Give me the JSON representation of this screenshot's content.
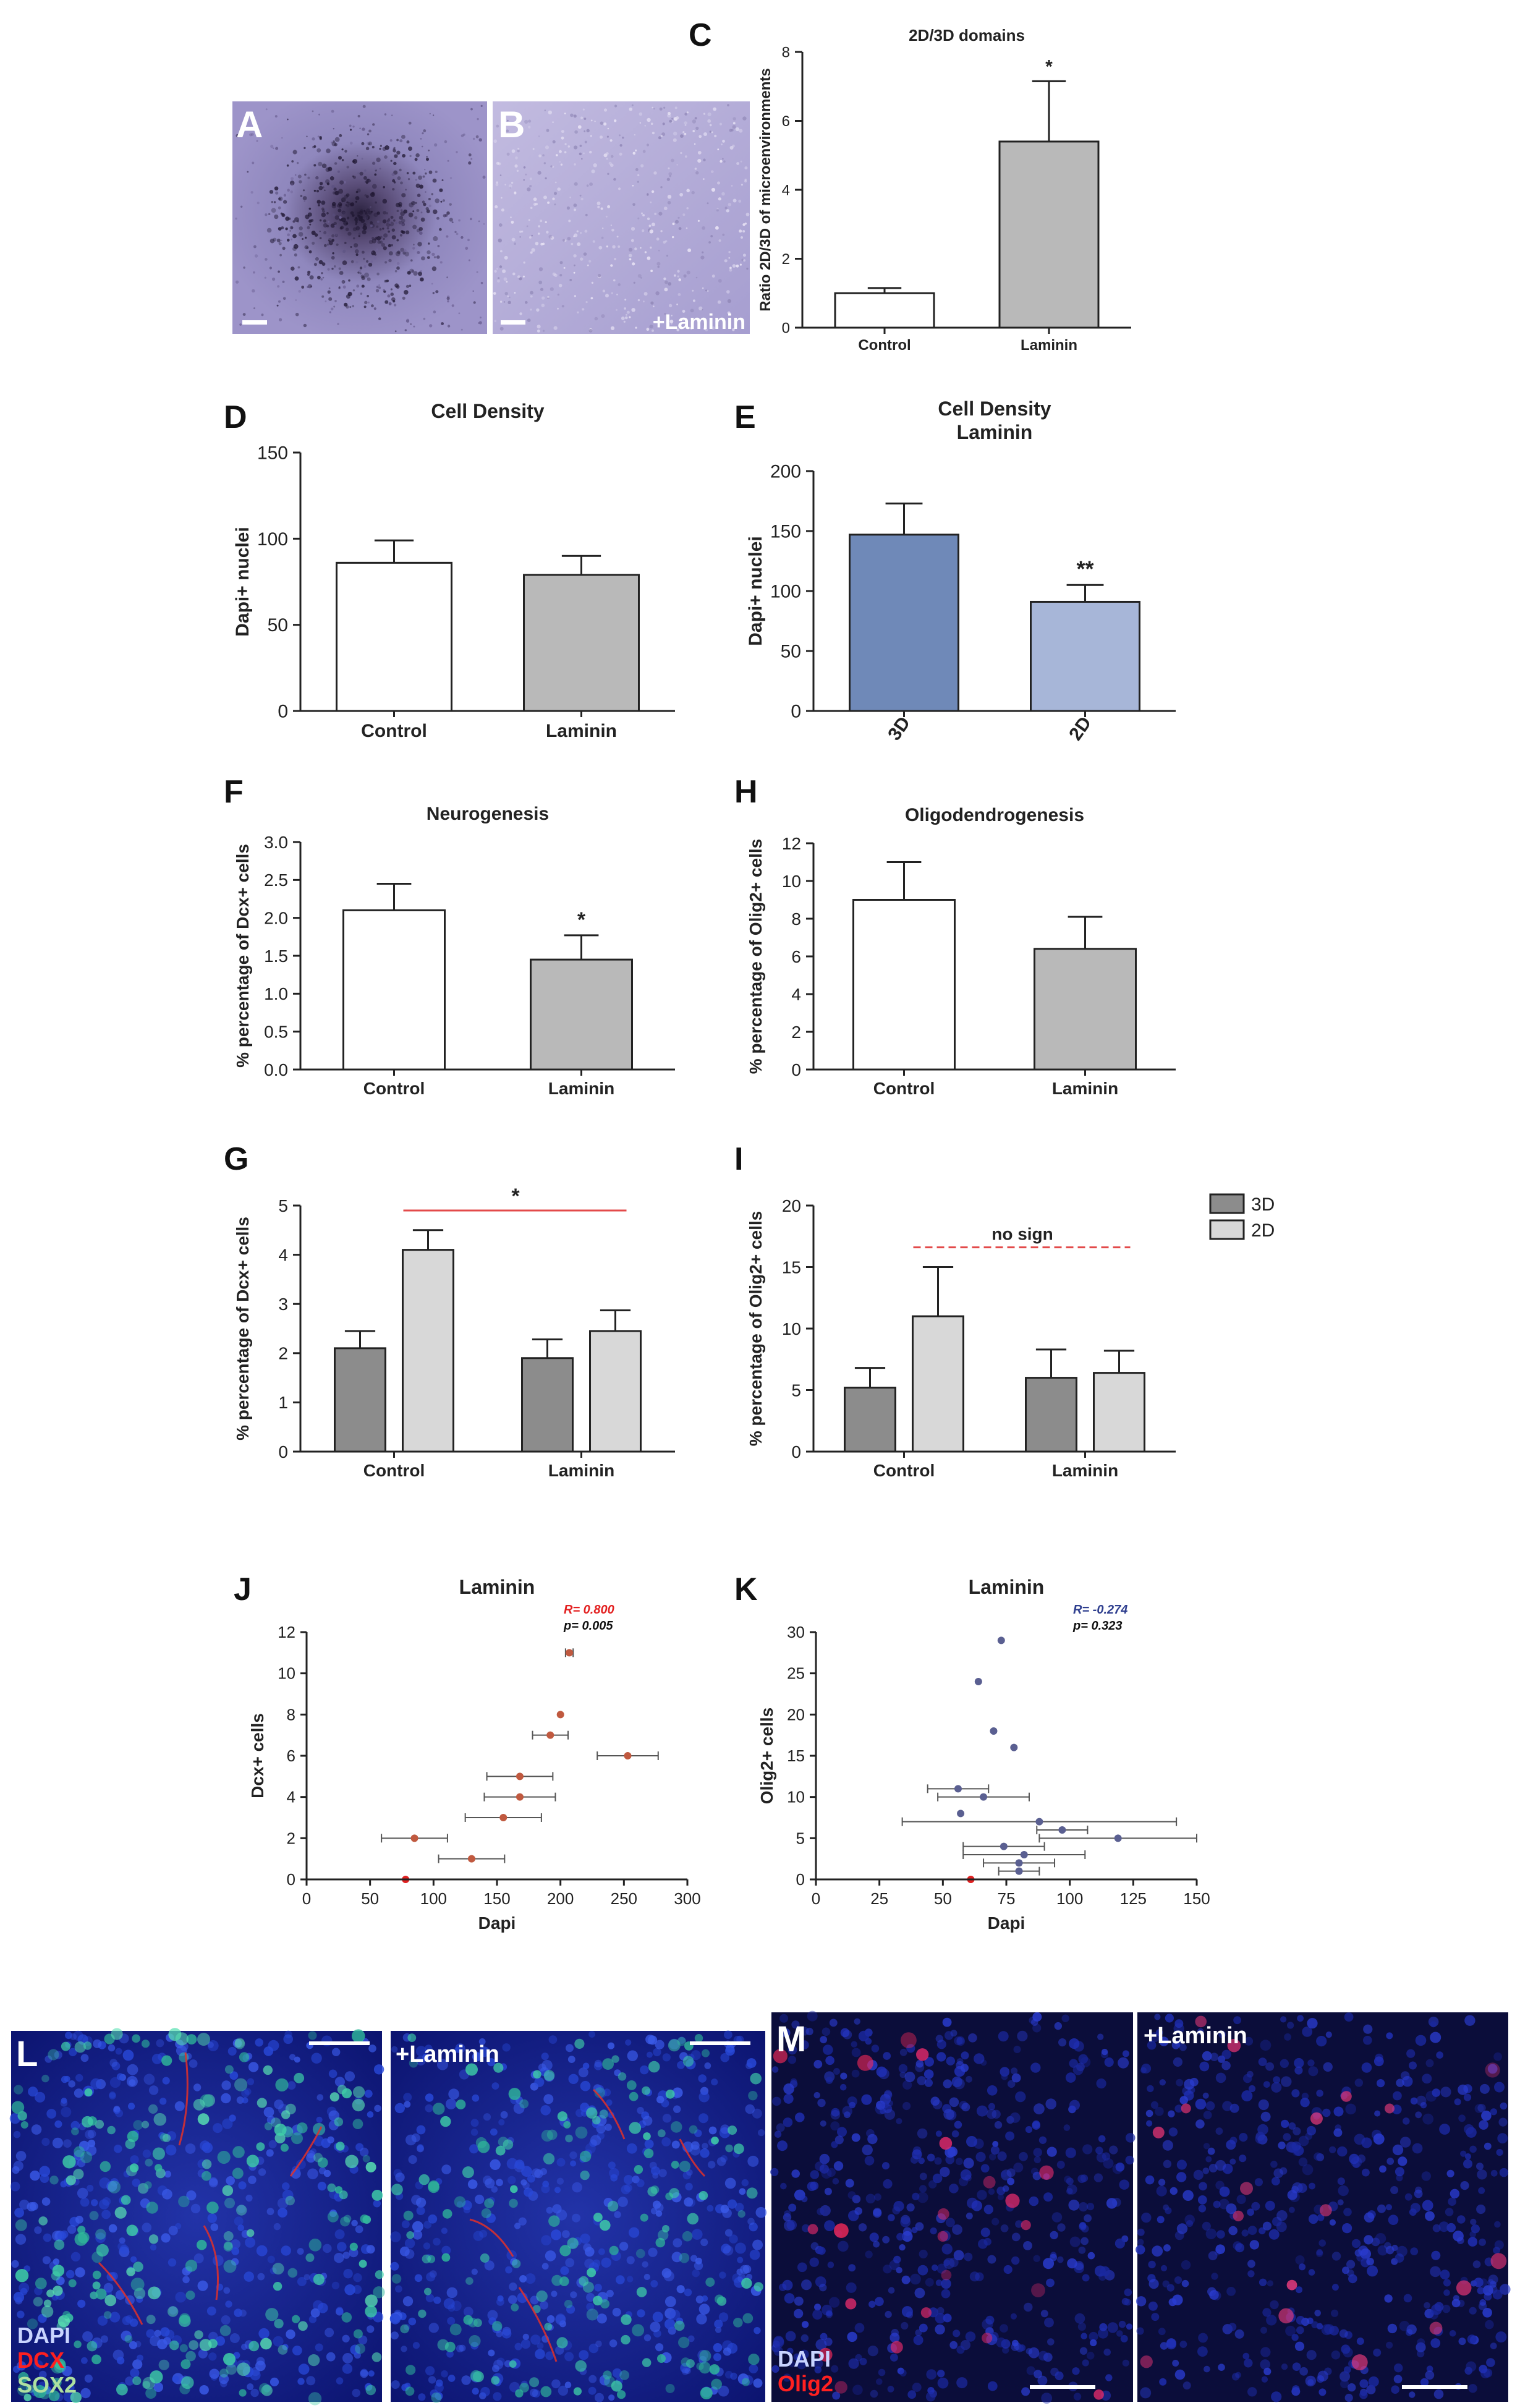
{
  "figure": {
    "panel_letters": {
      "A": "A",
      "B": "B",
      "C": "C",
      "D": "D",
      "E": "E",
      "F": "F",
      "H": "H",
      "G": "G",
      "I": "I",
      "J": "J",
      "K": "K",
      "L": "L",
      "M": "M"
    },
    "photo_overlays": {
      "B_condition": "+Laminin",
      "L_condition": "+Laminin",
      "M_condition": "+Laminin",
      "L_legend": [
        "DAPI",
        "DCX",
        "SOX2"
      ],
      "M_legend": [
        "DAPI",
        "Olig2"
      ]
    },
    "colors": {
      "white_bar": "#ffffff",
      "gray_bar": "#b9b9b9",
      "bar_3d": "#6f89b8",
      "bar_2d": "#a7b6d8",
      "grouped_3d": "#8c8c8c",
      "grouped_2d": "#d8d8d8",
      "sig_line": "#e34a4a",
      "scatter_j": "#c0593f",
      "scatter_k": "#5a5f91",
      "stat_red": "#e32121",
      "stat_blue": "#2f3f8f",
      "micro_a": "#9d94c9",
      "micro_b": "#b3abd6",
      "fluor_blue": "#1f2fb0",
      "fluor_bg": "#06061e"
    }
  },
  "chart_data": [
    {
      "id": "C",
      "type": "bar",
      "title": "2D/3D domains",
      "ylabel": "Ratio 2D/3D of microenvironments",
      "xlabel": "",
      "categories": [
        "Control",
        "Laminin"
      ],
      "values": [
        1.0,
        5.4
      ],
      "errors": [
        0.15,
        1.75
      ],
      "ylim": [
        0,
        8
      ],
      "yticks": [
        0,
        2,
        4,
        6,
        8
      ],
      "bar_colors": [
        "#ffffff",
        "#b9b9b9"
      ],
      "annotations": [
        "",
        "*"
      ]
    },
    {
      "id": "D",
      "type": "bar",
      "title": "Cell Density",
      "ylabel": "Dapi+ nuclei",
      "xlabel": "",
      "categories": [
        "Control",
        "Laminin"
      ],
      "values": [
        86,
        79
      ],
      "errors": [
        13,
        11
      ],
      "ylim": [
        0,
        150
      ],
      "yticks": [
        0,
        50,
        100,
        150
      ],
      "bar_colors": [
        "#ffffff",
        "#b9b9b9"
      ],
      "annotations": [
        "",
        ""
      ]
    },
    {
      "id": "E",
      "type": "bar",
      "title": "Cell Density",
      "subtitle": "Laminin",
      "ylabel": "Dapi+ nuclei",
      "xlabel": "",
      "categories": [
        "3D",
        "2D"
      ],
      "values": [
        147,
        91
      ],
      "errors": [
        26,
        14
      ],
      "ylim": [
        0,
        200
      ],
      "yticks": [
        0,
        50,
        100,
        150,
        200
      ],
      "bar_colors": [
        "#6f89b8",
        "#a7b6d8"
      ],
      "annotations": [
        "",
        "**"
      ],
      "rotated_ticks": true
    },
    {
      "id": "F",
      "type": "bar",
      "title": "Neurogenesis",
      "ylabel": "% percentage of Dcx+ cells",
      "xlabel": "",
      "categories": [
        "Control",
        "Laminin"
      ],
      "values": [
        2.1,
        1.45
      ],
      "errors": [
        0.35,
        0.32
      ],
      "ylim": [
        0,
        3.0
      ],
      "yticks": [
        0,
        0.5,
        1.0,
        1.5,
        2.0,
        2.5,
        3.0
      ],
      "tick_labels": [
        "0.0",
        "0.5",
        "1.0",
        "1.5",
        "2.0",
        "2.5",
        "3.0"
      ],
      "bar_colors": [
        "#ffffff",
        "#b9b9b9"
      ],
      "annotations": [
        "",
        "*"
      ]
    },
    {
      "id": "H",
      "type": "bar",
      "title": "Oligodendrogenesis",
      "ylabel": "% percentage of Olig2+ cells",
      "xlabel": "",
      "categories": [
        "Control",
        "Laminin"
      ],
      "values": [
        9.0,
        6.4
      ],
      "errors": [
        2.0,
        1.7
      ],
      "ylim": [
        0,
        12
      ],
      "yticks": [
        0,
        2,
        4,
        6,
        8,
        10,
        12
      ],
      "bar_colors": [
        "#ffffff",
        "#b9b9b9"
      ],
      "annotations": [
        "",
        ""
      ]
    },
    {
      "id": "G",
      "type": "grouped-bar",
      "title": "",
      "ylabel": "% percentage of Dcx+ cells",
      "xlabel": "",
      "categories": [
        "Control",
        "Laminin"
      ],
      "series": [
        {
          "name": "3D",
          "values": [
            2.1,
            1.9
          ],
          "errors": [
            0.35,
            0.38
          ],
          "color": "#8c8c8c"
        },
        {
          "name": "2D",
          "values": [
            4.1,
            2.45
          ],
          "errors": [
            0.4,
            0.42
          ],
          "color": "#d8d8d8"
        }
      ],
      "ylim": [
        0,
        5
      ],
      "yticks": [
        0,
        1,
        2,
        3,
        4,
        5
      ],
      "significance": {
        "label": "*",
        "style": "solid"
      }
    },
    {
      "id": "I",
      "type": "grouped-bar",
      "title": "",
      "ylabel": "% percentage of Olig2+ cells",
      "xlabel": "",
      "categories": [
        "Control",
        "Laminin"
      ],
      "series": [
        {
          "name": "3D",
          "values": [
            5.2,
            6.0
          ],
          "errors": [
            1.6,
            2.3
          ],
          "color": "#8c8c8c"
        },
        {
          "name": "2D",
          "values": [
            11.0,
            6.4
          ],
          "errors": [
            4.0,
            1.8
          ],
          "color": "#d8d8d8"
        }
      ],
      "ylim": [
        0,
        20
      ],
      "yticks": [
        0,
        5,
        10,
        15,
        20
      ],
      "significance": {
        "label": "no sign",
        "style": "dashed"
      },
      "legend": [
        "3D",
        "2D"
      ]
    },
    {
      "id": "J",
      "type": "scatter",
      "title": "Laminin",
      "xlabel": "Dapi",
      "ylabel": "Dcx+ cells",
      "xlim": [
        0,
        300
      ],
      "ylim": [
        0,
        12
      ],
      "xticks": [
        0,
        50,
        100,
        150,
        200,
        250,
        300
      ],
      "yticks": [
        0,
        2,
        4,
        6,
        8,
        10,
        12
      ],
      "points": [
        {
          "x": 78,
          "y": 0,
          "xerr": 0
        },
        {
          "x": 130,
          "y": 1,
          "xerr": 26
        },
        {
          "x": 85,
          "y": 2,
          "xerr": 26
        },
        {
          "x": 155,
          "y": 3,
          "xerr": 30
        },
        {
          "x": 168,
          "y": 4,
          "xerr": 28
        },
        {
          "x": 168,
          "y": 5,
          "xerr": 26
        },
        {
          "x": 253,
          "y": 6,
          "xerr": 24
        },
        {
          "x": 192,
          "y": 7,
          "xerr": 14
        },
        {
          "x": 200,
          "y": 8,
          "xerr": 0
        },
        {
          "x": 207,
          "y": 11,
          "xerr": 3
        }
      ],
      "stats": {
        "r": "R= 0.800",
        "p": "p= 0.005"
      }
    },
    {
      "id": "K",
      "type": "scatter",
      "title": "Laminin",
      "xlabel": "Dapi",
      "ylabel": "Olig2+ cells",
      "xlim": [
        0,
        150
      ],
      "ylim": [
        0,
        30
      ],
      "xticks": [
        0,
        25,
        50,
        75,
        100,
        125,
        150
      ],
      "yticks": [
        0,
        5,
        10,
        15,
        20,
        25,
        30
      ],
      "points": [
        {
          "x": 61,
          "y": 0,
          "xerr": 0
        },
        {
          "x": 80,
          "y": 1,
          "xerr": 8
        },
        {
          "x": 80,
          "y": 2,
          "xerr": 14
        },
        {
          "x": 82,
          "y": 3,
          "xerr": 24
        },
        {
          "x": 74,
          "y": 4,
          "xerr": 16
        },
        {
          "x": 119,
          "y": 5,
          "xerr": 31
        },
        {
          "x": 97,
          "y": 6,
          "xerr": 10
        },
        {
          "x": 88,
          "y": 7,
          "xerr": 54
        },
        {
          "x": 57,
          "y": 8,
          "xerr": 0
        },
        {
          "x": 66,
          "y": 10,
          "xerr": 18
        },
        {
          "x": 56,
          "y": 11,
          "xerr": 12
        },
        {
          "x": 78,
          "y": 16,
          "xerr": 0
        },
        {
          "x": 70,
          "y": 18,
          "xerr": 0
        },
        {
          "x": 64,
          "y": 24,
          "xerr": 0
        },
        {
          "x": 73,
          "y": 29,
          "xerr": 0
        }
      ],
      "stats": {
        "r": "R= -0.274",
        "p": "p= 0.323"
      }
    }
  ]
}
